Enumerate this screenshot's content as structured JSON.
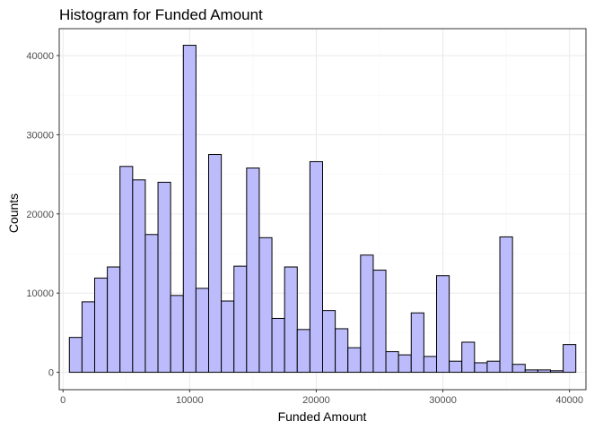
{
  "chart_data": {
    "type": "bar",
    "subtype": "histogram",
    "title": "Histogram for Funded Amount",
    "xlabel": "Funded Amount",
    "ylabel": "Counts",
    "bin_width": 1000,
    "bin_start": 500,
    "values": [
      4400,
      8900,
      11900,
      13300,
      26000,
      24300,
      17400,
      24000,
      9700,
      41300,
      10600,
      27500,
      9000,
      13400,
      25800,
      17000,
      6800,
      13300,
      5400,
      26600,
      7800,
      5500,
      3100,
      14800,
      12900,
      2600,
      2200,
      7500,
      2000,
      12200,
      1400,
      3800,
      1200,
      1400,
      17100,
      1000,
      300,
      300,
      200,
      3500
    ],
    "xlim": [
      -300,
      41300
    ],
    "ylim": [
      -2200,
      43400
    ],
    "x_ticks": [
      0,
      10000,
      20000,
      30000,
      40000
    ],
    "y_ticks": [
      0,
      10000,
      20000,
      30000,
      40000
    ],
    "grid": true,
    "legend": "none",
    "colors": {
      "bar_fill": "#bcbcfc",
      "bar_stroke": "#000000",
      "grid_major": "#ebebeb",
      "grid_minor": "#f5f5f5",
      "panel_border": "#333333",
      "tick_text": "#4d4d4d"
    }
  }
}
